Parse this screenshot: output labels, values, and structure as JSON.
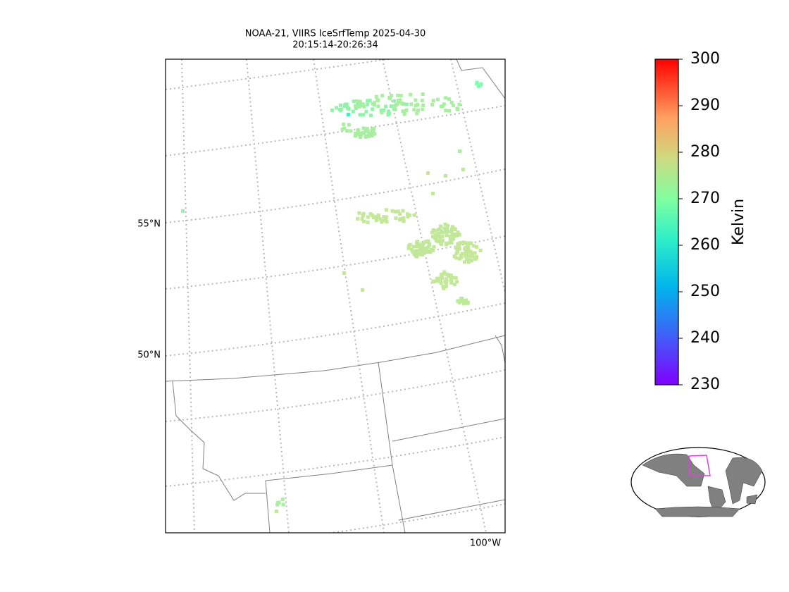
{
  "title_lines": [
    "NOAA-21, VIIRS IceSrfTemp 2025-04-30",
    "20:15:14-20:26:34"
  ],
  "lat_labels": [
    "55°N",
    "50°N"
  ],
  "lon_labels": [
    "100°W"
  ],
  "colorbar": {
    "label": "Kelvin",
    "lim": [
      230,
      300
    ],
    "ticks": [
      230,
      240,
      250,
      260,
      270,
      280,
      290,
      300
    ]
  }
}
